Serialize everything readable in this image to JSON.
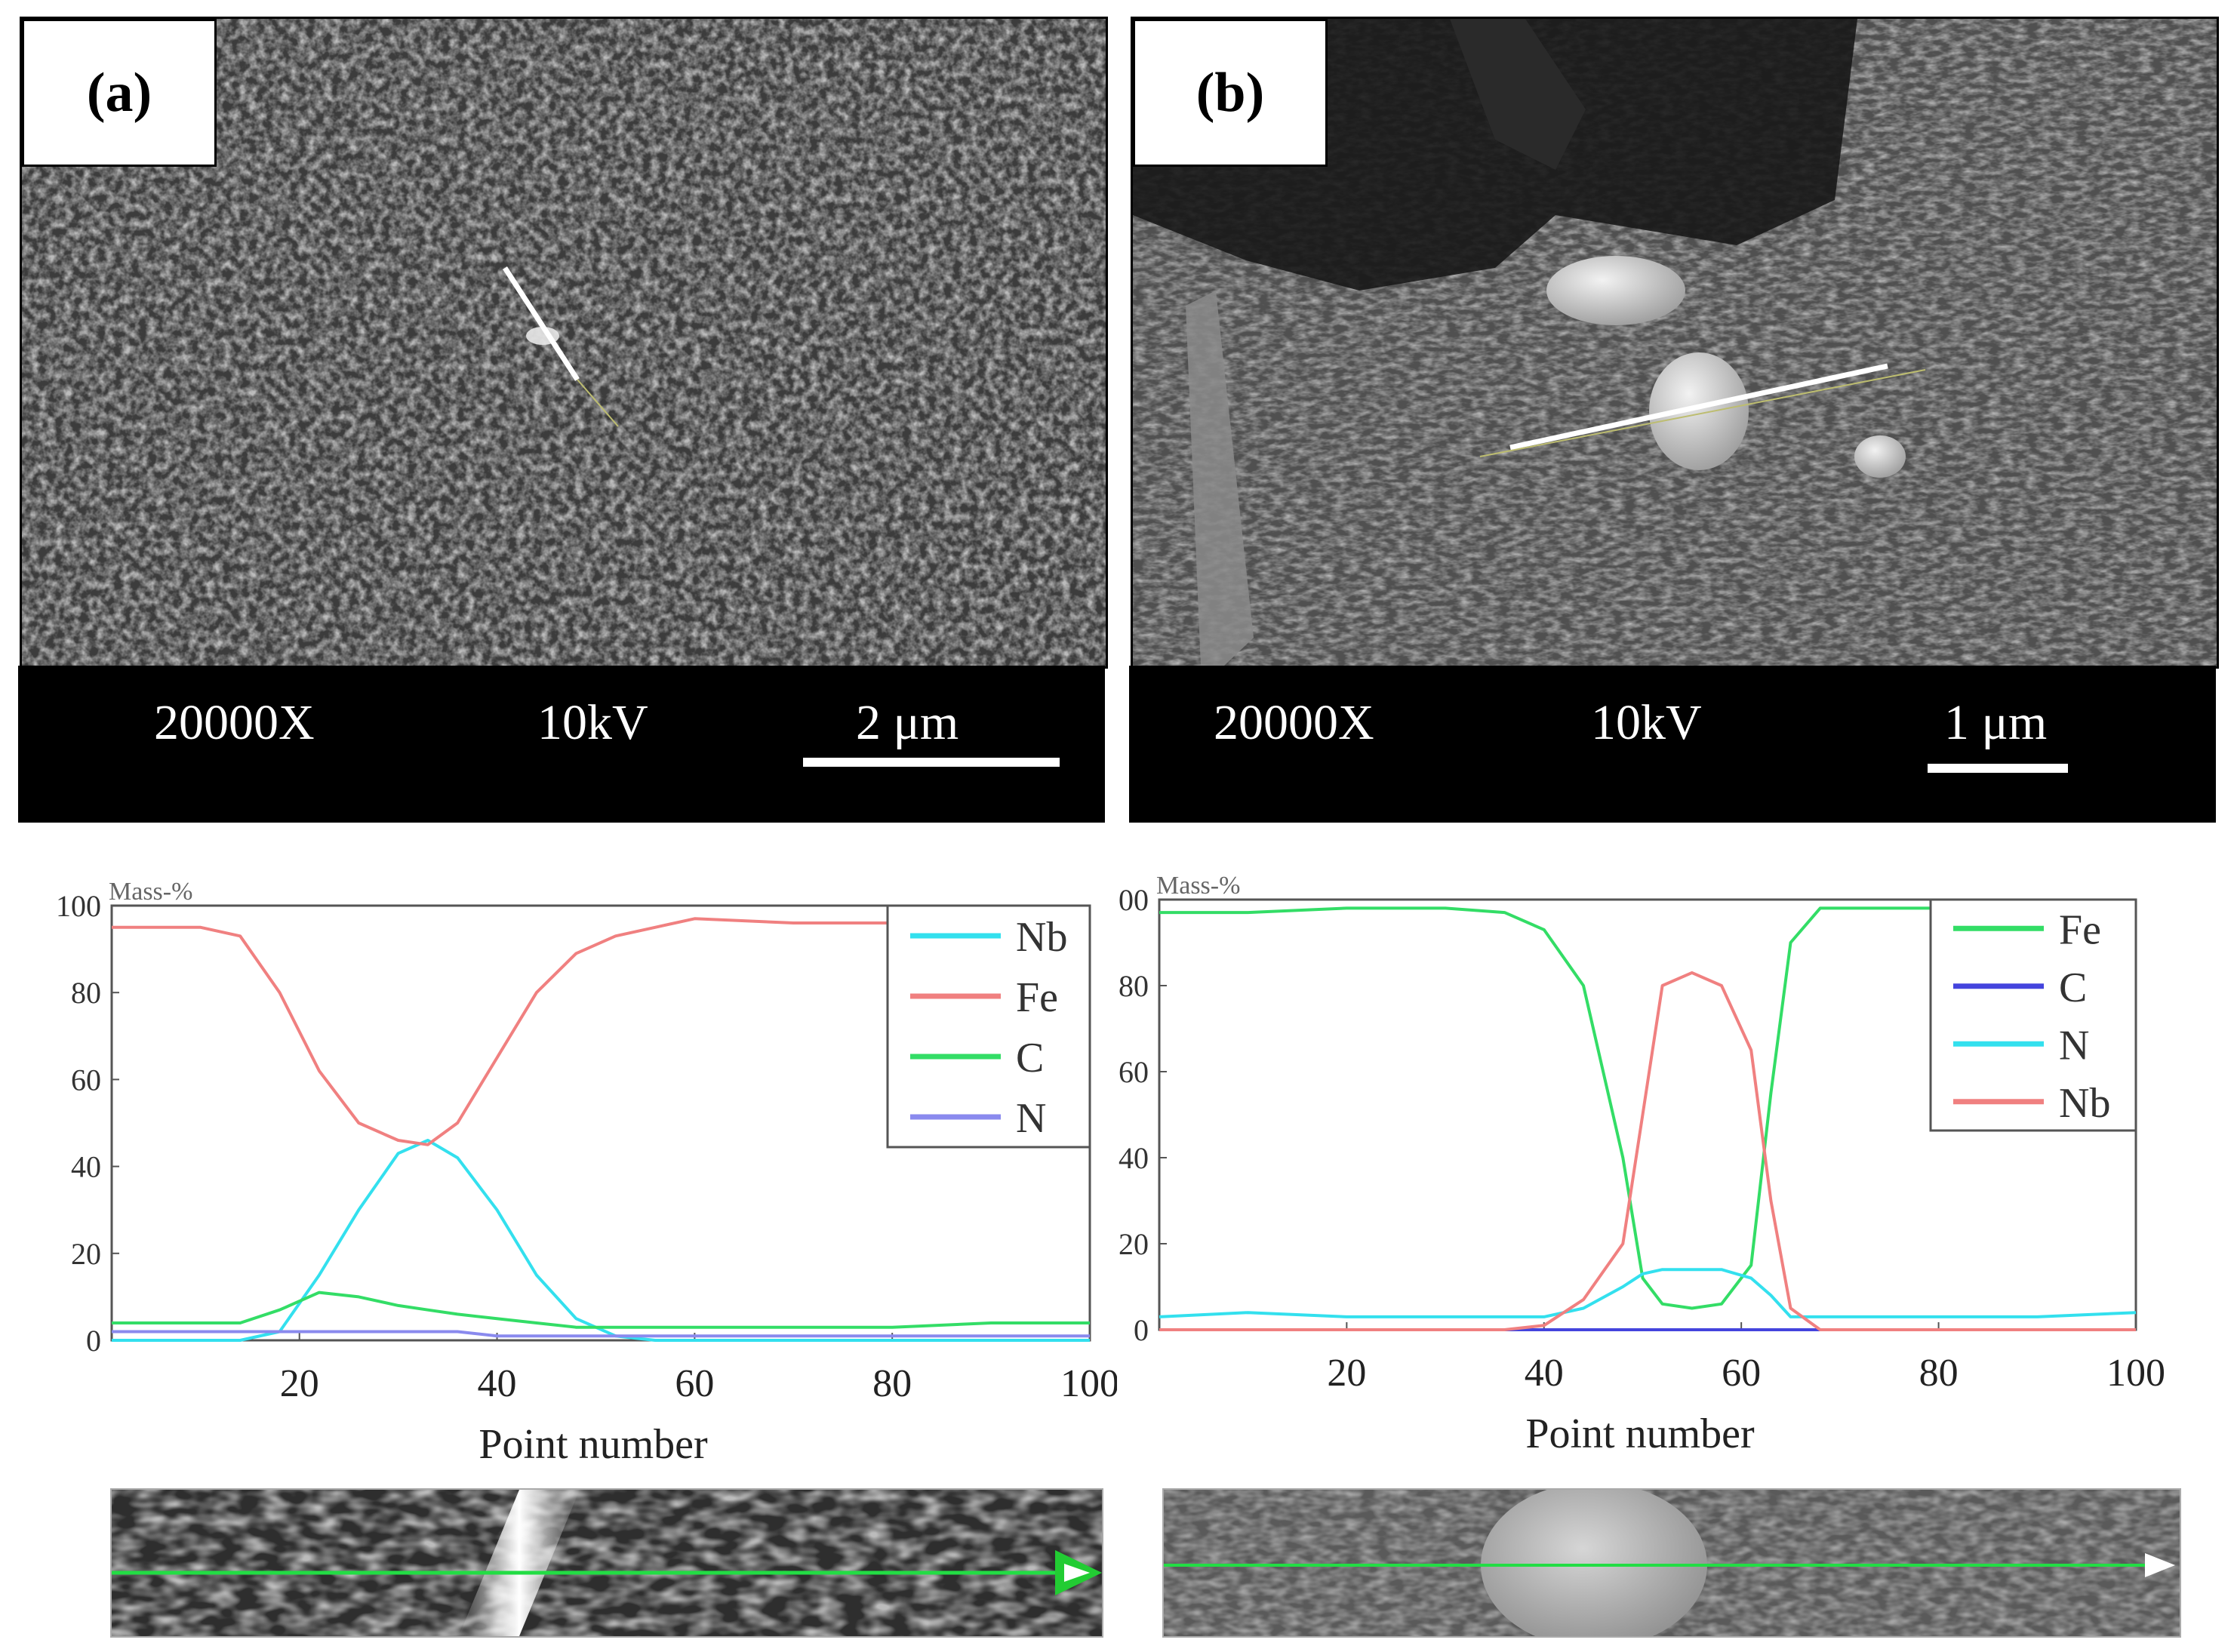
{
  "panels": {
    "a": {
      "label": "(a)",
      "magnification": "20000X",
      "voltage": "10kV",
      "scale": "2 μm"
    },
    "b": {
      "label": "(b)",
      "magnification": "20000X",
      "voltage": "10kV",
      "scale": "1 μm"
    }
  },
  "chart_data": [
    {
      "type": "line",
      "ylabel": "Mass-%",
      "xlabel": "Point number",
      "xlim": [
        1,
        100
      ],
      "ylim": [
        0,
        100
      ],
      "xticks": [
        "20",
        "40",
        "60",
        "80",
        "100"
      ],
      "yticks": [
        "0",
        "20",
        "40",
        "60",
        "80",
        "100"
      ],
      "legend_position": "top-right",
      "x": [
        1,
        5,
        10,
        14,
        18,
        22,
        26,
        30,
        33,
        36,
        40,
        44,
        48,
        52,
        56,
        60,
        70,
        80,
        90,
        100
      ],
      "series": [
        {
          "name": "Nb",
          "color": "#33e0ee",
          "values": [
            0,
            0,
            0,
            0,
            2,
            15,
            30,
            43,
            46,
            42,
            30,
            15,
            5,
            1,
            0,
            0,
            0,
            0,
            0,
            0
          ]
        },
        {
          "name": "Fe",
          "color": "#f08080",
          "values": [
            95,
            95,
            95,
            93,
            80,
            62,
            50,
            46,
            45,
            50,
            65,
            80,
            89,
            93,
            95,
            97,
            96,
            96,
            96,
            96
          ]
        },
        {
          "name": "C",
          "color": "#33dd66",
          "values": [
            4,
            4,
            4,
            4,
            7,
            11,
            10,
            8,
            7,
            6,
            5,
            4,
            3,
            3,
            3,
            3,
            3,
            3,
            4,
            4
          ]
        },
        {
          "name": "N",
          "color": "#8a8aee",
          "values": [
            2,
            2,
            2,
            2,
            2,
            2,
            2,
            2,
            2,
            2,
            1,
            1,
            1,
            1,
            1,
            1,
            1,
            1,
            1,
            1
          ]
        }
      ]
    },
    {
      "type": "line",
      "ylabel": "Mass-%",
      "xlabel": "Point number",
      "xlim": [
        1,
        100
      ],
      "ylim": [
        0,
        100
      ],
      "xticks": [
        "20",
        "40",
        "60",
        "80",
        "100"
      ],
      "yticks": [
        "0",
        "20",
        "40",
        "60",
        "80",
        "100"
      ],
      "legend_position": "top-right",
      "x": [
        1,
        10,
        20,
        30,
        36,
        40,
        44,
        48,
        50,
        52,
        55,
        58,
        61,
        63,
        65,
        68,
        70,
        80,
        90,
        100
      ],
      "series": [
        {
          "name": "Fe",
          "color": "#33dd66",
          "values": [
            97,
            97,
            98,
            98,
            97,
            93,
            80,
            40,
            12,
            6,
            5,
            6,
            15,
            55,
            90,
            98,
            98,
            98,
            98,
            98
          ]
        },
        {
          "name": "C",
          "color": "#4444dd",
          "values": [
            0,
            0,
            0,
            0,
            0,
            0,
            0,
            0,
            0,
            0,
            0,
            0,
            0,
            0,
            0,
            0,
            0,
            0,
            0,
            0
          ]
        },
        {
          "name": "N",
          "color": "#33e0ee",
          "values": [
            3,
            4,
            3,
            3,
            3,
            3,
            5,
            10,
            13,
            14,
            14,
            14,
            12,
            8,
            3,
            3,
            3,
            3,
            3,
            4
          ]
        },
        {
          "name": "Nb",
          "color": "#f08080",
          "values": [
            0,
            0,
            0,
            0,
            0,
            1,
            7,
            20,
            50,
            80,
            83,
            80,
            65,
            30,
            5,
            0,
            0,
            0,
            0,
            0
          ]
        }
      ]
    }
  ]
}
